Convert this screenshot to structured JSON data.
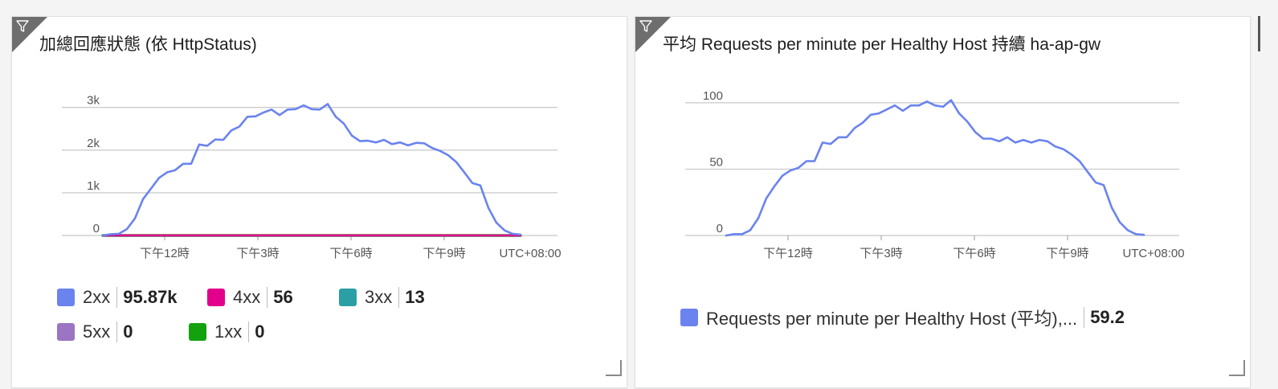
{
  "colors": {
    "2xx": "#6b83ee",
    "4xx": "#e3008c",
    "3xx": "#2aa0a4",
    "5xx": "#9b74c2",
    "1xx": "#13a10e",
    "grid": "#c8c8c8"
  },
  "tile1": {
    "title": "加總回應狀態 (依 HttpStatus)",
    "legend": [
      {
        "name": "2xx",
        "value": "95.87k"
      },
      {
        "name": "4xx",
        "value": "56"
      },
      {
        "name": "3xx",
        "value": "13"
      },
      {
        "name": "5xx",
        "value": "0"
      },
      {
        "name": "1xx",
        "value": "0"
      }
    ]
  },
  "tile2": {
    "title": "平均 Requests per minute per Healthy Host 持續 ha-ap-gw",
    "legend": [
      {
        "name": "Requests per minute per Healthy Host (平均),...",
        "value": "59.2"
      }
    ]
  },
  "icons": {
    "filter": "filter-icon",
    "resize": "resize-handle-icon"
  },
  "chart_data": [
    {
      "type": "line",
      "title": "加總回應狀態 (依 HttpStatus)",
      "x_tick_labels": [
        "下午12時",
        "下午3時",
        "下午6時",
        "下午9時"
      ],
      "timezone_label": "UTC+08:00",
      "y_tick_labels": [
        "0",
        "1k",
        "2k",
        "3k"
      ],
      "ylim": [
        0,
        3200
      ],
      "grid": true,
      "legend_position": "bottom",
      "series": [
        {
          "name": "2xx",
          "color": "#6b83ee",
          "values": [
            0,
            30,
            40,
            150,
            400,
            850,
            1100,
            1350,
            1480,
            1530,
            1680,
            1680,
            2130,
            2100,
            2250,
            2240,
            2460,
            2550,
            2780,
            2790,
            2880,
            2950,
            2820,
            2950,
            2960,
            3050,
            2960,
            2950,
            3080,
            2780,
            2620,
            2340,
            2210,
            2220,
            2180,
            2240,
            2140,
            2180,
            2110,
            2170,
            2160,
            2050,
            1980,
            1880,
            1720,
            1480,
            1230,
            1170,
            650,
            300,
            120,
            40,
            20
          ]
        },
        {
          "name": "4xx",
          "color": "#e3008c",
          "values": [
            0,
            0,
            1,
            1,
            1,
            2,
            1,
            2,
            1,
            1,
            2,
            1,
            2,
            1,
            1,
            2,
            1,
            1,
            2,
            1,
            1,
            2,
            1,
            1,
            2,
            1,
            1,
            2,
            1,
            1,
            2,
            1,
            1,
            1,
            2,
            1,
            1,
            1,
            2,
            1,
            1,
            1,
            1,
            1,
            1,
            1,
            1,
            1,
            0,
            0,
            0,
            0,
            0
          ]
        },
        {
          "name": "3xx",
          "color": "#2aa0a4",
          "values": [
            0,
            0,
            0,
            0,
            0,
            0,
            1,
            0,
            0,
            0,
            0,
            1,
            0,
            0,
            0,
            0,
            1,
            0,
            0,
            0,
            0,
            1,
            0,
            0,
            0,
            0,
            1,
            0,
            0,
            0,
            0,
            1,
            0,
            0,
            0,
            0,
            1,
            0,
            0,
            0,
            0,
            1,
            0,
            0,
            0,
            0,
            0,
            0,
            0,
            0,
            0,
            0,
            0
          ]
        },
        {
          "name": "5xx",
          "color": "#9b74c2",
          "values": [
            0,
            0,
            0,
            0,
            0,
            0,
            0,
            0,
            0,
            0,
            0,
            0,
            0,
            0,
            0,
            0,
            0,
            0,
            0,
            0,
            0,
            0,
            0,
            0,
            0,
            0,
            0,
            0,
            0,
            0,
            0,
            0,
            0,
            0,
            0,
            0,
            0,
            0,
            0,
            0,
            0,
            0,
            0,
            0,
            0,
            0,
            0,
            0,
            0,
            0,
            0,
            0,
            0
          ]
        },
        {
          "name": "1xx",
          "color": "#13a10e",
          "values": [
            0,
            0,
            0,
            0,
            0,
            0,
            0,
            0,
            0,
            0,
            0,
            0,
            0,
            0,
            0,
            0,
            0,
            0,
            0,
            0,
            0,
            0,
            0,
            0,
            0,
            0,
            0,
            0,
            0,
            0,
            0,
            0,
            0,
            0,
            0,
            0,
            0,
            0,
            0,
            0,
            0,
            0,
            0,
            0,
            0,
            0,
            0,
            0,
            0,
            0,
            0,
            0,
            0
          ]
        }
      ]
    },
    {
      "type": "line",
      "title": "平均 Requests per minute per Healthy Host 持續 ha-ap-gw",
      "x_tick_labels": [
        "下午12時",
        "下午3時",
        "下午6時",
        "下午9時"
      ],
      "timezone_label": "UTC+08:00",
      "y_tick_labels": [
        "0",
        "50",
        "100"
      ],
      "ylim": [
        0,
        106
      ],
      "grid": true,
      "legend_position": "bottom",
      "series": [
        {
          "name": "Requests per minute per Healthy Host (平均),...",
          "color": "#6b83ee",
          "values": [
            0,
            1,
            1,
            4,
            13,
            28,
            37,
            45,
            49,
            51,
            56,
            56,
            70,
            69,
            74,
            74,
            81,
            85,
            91,
            92,
            95,
            98,
            94,
            98,
            98,
            101,
            98,
            97,
            102,
            92,
            86,
            78,
            73,
            73,
            71,
            74,
            70,
            72,
            70,
            72,
            71,
            67,
            65,
            61,
            56,
            48,
            40,
            38,
            21,
            10,
            4,
            1,
            0.5
          ]
        }
      ]
    }
  ]
}
